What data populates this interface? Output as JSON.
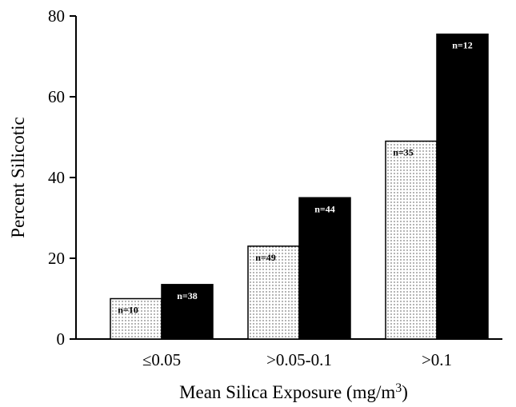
{
  "chart_data": {
    "type": "bar",
    "title": "",
    "xlabel": "Mean Silica Exposure (mg/m",
    "xlabel_superscript": "3",
    "xlabel_suffix": ")",
    "ylabel": "Percent Silicotic",
    "ylim": [
      0,
      80
    ],
    "yticks": [
      "0",
      "20",
      "40",
      "60",
      "80"
    ],
    "categories": [
      "≤0.05",
      ">0.05-0.1",
      ">0.1"
    ],
    "series": [
      {
        "values": [
          10,
          23,
          49
        ],
        "n_labels": [
          "n=10",
          "n=49",
          "n=35"
        ],
        "color": "#ffffff",
        "pattern": "dotted"
      },
      {
        "values": [
          13.5,
          35,
          75.5
        ],
        "n_labels": [
          "n=38",
          "n=44",
          "n=12"
        ],
        "color": "#000000",
        "pattern": "solid"
      }
    ],
    "grid": false,
    "legend": "none"
  }
}
